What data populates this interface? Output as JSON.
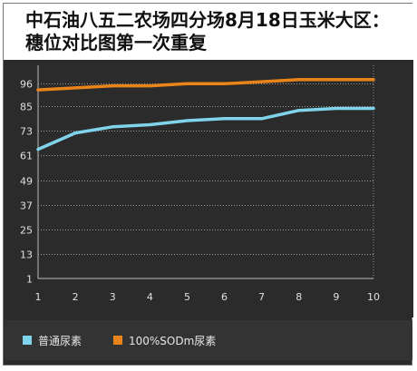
{
  "chart_data": {
    "type": "line",
    "title": "中石油八五二农场四分场8月18日玉米大区：穗位对比图第一次重复",
    "xlabel": "",
    "ylabel": "",
    "x": [
      1,
      2,
      3,
      4,
      5,
      6,
      7,
      8,
      9,
      10
    ],
    "y_ticks": [
      1,
      13,
      25,
      37,
      49,
      61,
      73,
      85,
      96
    ],
    "ylim": [
      1,
      105
    ],
    "grid": true,
    "legend_position": "bottom-left",
    "series": [
      {
        "name": "普通尿素",
        "color": "#7fd3ea",
        "values": [
          64,
          72,
          75,
          76,
          78,
          79,
          79,
          83,
          84,
          84
        ]
      },
      {
        "name": "100%SODm尿素",
        "color": "#e8841a",
        "values": [
          93,
          94,
          95,
          95,
          96,
          96,
          97,
          98,
          98,
          98
        ]
      }
    ]
  }
}
